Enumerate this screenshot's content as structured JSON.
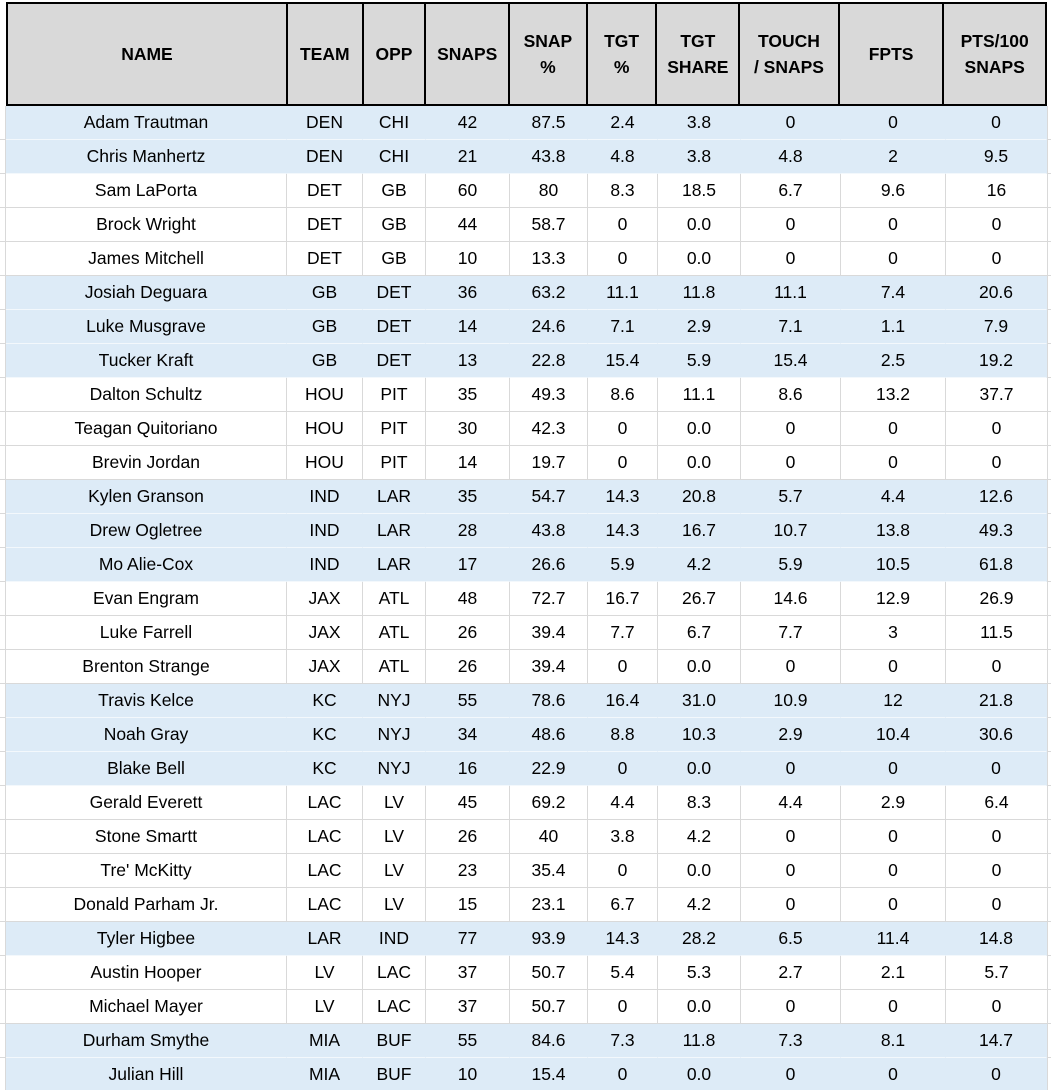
{
  "colors": {
    "header_bg": "#d9d9d9",
    "header_border": "#000000",
    "gridline": "#d9d9d9",
    "row_shaded_bg": "#ddebf7",
    "row_plain_bg": "#ffffff",
    "text": "#000000"
  },
  "table": {
    "columns": [
      {
        "key": "name",
        "label": "NAME"
      },
      {
        "key": "team",
        "label": "TEAM"
      },
      {
        "key": "opp",
        "label": "OPP"
      },
      {
        "key": "snaps",
        "label": "SNAPS"
      },
      {
        "key": "snap_pct",
        "label": "SNAP\n%"
      },
      {
        "key": "tgt_pct",
        "label": "TGT\n%"
      },
      {
        "key": "tgt_share",
        "label": "TGT\nSHARE"
      },
      {
        "key": "touch_per_snaps",
        "label": "TOUCH\n/ SNAPS"
      },
      {
        "key": "fpts",
        "label": "FPTS"
      },
      {
        "key": "pts_per_100_snaps",
        "label": "PTS/100\nSNAPS"
      }
    ],
    "rows": [
      {
        "name": "Adam Trautman",
        "team": "DEN",
        "opp": "CHI",
        "snaps": "42",
        "snap_pct": "87.5",
        "tgt_pct": "2.4",
        "tgt_share": "3.8",
        "touch_per_snaps": "0",
        "fpts": "0",
        "pts_per_100_snaps": "0",
        "shaded": true
      },
      {
        "name": "Chris Manhertz",
        "team": "DEN",
        "opp": "CHI",
        "snaps": "21",
        "snap_pct": "43.8",
        "tgt_pct": "4.8",
        "tgt_share": "3.8",
        "touch_per_snaps": "4.8",
        "fpts": "2",
        "pts_per_100_snaps": "9.5",
        "shaded": true
      },
      {
        "name": "Sam LaPorta",
        "team": "DET",
        "opp": "GB",
        "snaps": "60",
        "snap_pct": "80",
        "tgt_pct": "8.3",
        "tgt_share": "18.5",
        "touch_per_snaps": "6.7",
        "fpts": "9.6",
        "pts_per_100_snaps": "16",
        "shaded": false
      },
      {
        "name": "Brock Wright",
        "team": "DET",
        "opp": "GB",
        "snaps": "44",
        "snap_pct": "58.7",
        "tgt_pct": "0",
        "tgt_share": "0.0",
        "touch_per_snaps": "0",
        "fpts": "0",
        "pts_per_100_snaps": "0",
        "shaded": false
      },
      {
        "name": "James Mitchell",
        "team": "DET",
        "opp": "GB",
        "snaps": "10",
        "snap_pct": "13.3",
        "tgt_pct": "0",
        "tgt_share": "0.0",
        "touch_per_snaps": "0",
        "fpts": "0",
        "pts_per_100_snaps": "0",
        "shaded": false
      },
      {
        "name": "Josiah Deguara",
        "team": "GB",
        "opp": "DET",
        "snaps": "36",
        "snap_pct": "63.2",
        "tgt_pct": "11.1",
        "tgt_share": "11.8",
        "touch_per_snaps": "11.1",
        "fpts": "7.4",
        "pts_per_100_snaps": "20.6",
        "shaded": true
      },
      {
        "name": "Luke Musgrave",
        "team": "GB",
        "opp": "DET",
        "snaps": "14",
        "snap_pct": "24.6",
        "tgt_pct": "7.1",
        "tgt_share": "2.9",
        "touch_per_snaps": "7.1",
        "fpts": "1.1",
        "pts_per_100_snaps": "7.9",
        "shaded": true
      },
      {
        "name": "Tucker Kraft",
        "team": "GB",
        "opp": "DET",
        "snaps": "13",
        "snap_pct": "22.8",
        "tgt_pct": "15.4",
        "tgt_share": "5.9",
        "touch_per_snaps": "15.4",
        "fpts": "2.5",
        "pts_per_100_snaps": "19.2",
        "shaded": true
      },
      {
        "name": "Dalton Schultz",
        "team": "HOU",
        "opp": "PIT",
        "snaps": "35",
        "snap_pct": "49.3",
        "tgt_pct": "8.6",
        "tgt_share": "11.1",
        "touch_per_snaps": "8.6",
        "fpts": "13.2",
        "pts_per_100_snaps": "37.7",
        "shaded": false
      },
      {
        "name": "Teagan Quitoriano",
        "team": "HOU",
        "opp": "PIT",
        "snaps": "30",
        "snap_pct": "42.3",
        "tgt_pct": "0",
        "tgt_share": "0.0",
        "touch_per_snaps": "0",
        "fpts": "0",
        "pts_per_100_snaps": "0",
        "shaded": false
      },
      {
        "name": "Brevin Jordan",
        "team": "HOU",
        "opp": "PIT",
        "snaps": "14",
        "snap_pct": "19.7",
        "tgt_pct": "0",
        "tgt_share": "0.0",
        "touch_per_snaps": "0",
        "fpts": "0",
        "pts_per_100_snaps": "0",
        "shaded": false
      },
      {
        "name": "Kylen Granson",
        "team": "IND",
        "opp": "LAR",
        "snaps": "35",
        "snap_pct": "54.7",
        "tgt_pct": "14.3",
        "tgt_share": "20.8",
        "touch_per_snaps": "5.7",
        "fpts": "4.4",
        "pts_per_100_snaps": "12.6",
        "shaded": true
      },
      {
        "name": "Drew Ogletree",
        "team": "IND",
        "opp": "LAR",
        "snaps": "28",
        "snap_pct": "43.8",
        "tgt_pct": "14.3",
        "tgt_share": "16.7",
        "touch_per_snaps": "10.7",
        "fpts": "13.8",
        "pts_per_100_snaps": "49.3",
        "shaded": true
      },
      {
        "name": "Mo Alie-Cox",
        "team": "IND",
        "opp": "LAR",
        "snaps": "17",
        "snap_pct": "26.6",
        "tgt_pct": "5.9",
        "tgt_share": "4.2",
        "touch_per_snaps": "5.9",
        "fpts": "10.5",
        "pts_per_100_snaps": "61.8",
        "shaded": true
      },
      {
        "name": "Evan Engram",
        "team": "JAX",
        "opp": "ATL",
        "snaps": "48",
        "snap_pct": "72.7",
        "tgt_pct": "16.7",
        "tgt_share": "26.7",
        "touch_per_snaps": "14.6",
        "fpts": "12.9",
        "pts_per_100_snaps": "26.9",
        "shaded": false
      },
      {
        "name": "Luke Farrell",
        "team": "JAX",
        "opp": "ATL",
        "snaps": "26",
        "snap_pct": "39.4",
        "tgt_pct": "7.7",
        "tgt_share": "6.7",
        "touch_per_snaps": "7.7",
        "fpts": "3",
        "pts_per_100_snaps": "11.5",
        "shaded": false
      },
      {
        "name": "Brenton Strange",
        "team": "JAX",
        "opp": "ATL",
        "snaps": "26",
        "snap_pct": "39.4",
        "tgt_pct": "0",
        "tgt_share": "0.0",
        "touch_per_snaps": "0",
        "fpts": "0",
        "pts_per_100_snaps": "0",
        "shaded": false
      },
      {
        "name": "Travis Kelce",
        "team": "KC",
        "opp": "NYJ",
        "snaps": "55",
        "snap_pct": "78.6",
        "tgt_pct": "16.4",
        "tgt_share": "31.0",
        "touch_per_snaps": "10.9",
        "fpts": "12",
        "pts_per_100_snaps": "21.8",
        "shaded": true
      },
      {
        "name": "Noah Gray",
        "team": "KC",
        "opp": "NYJ",
        "snaps": "34",
        "snap_pct": "48.6",
        "tgt_pct": "8.8",
        "tgt_share": "10.3",
        "touch_per_snaps": "2.9",
        "fpts": "10.4",
        "pts_per_100_snaps": "30.6",
        "shaded": true
      },
      {
        "name": "Blake Bell",
        "team": "KC",
        "opp": "NYJ",
        "snaps": "16",
        "snap_pct": "22.9",
        "tgt_pct": "0",
        "tgt_share": "0.0",
        "touch_per_snaps": "0",
        "fpts": "0",
        "pts_per_100_snaps": "0",
        "shaded": true
      },
      {
        "name": "Gerald Everett",
        "team": "LAC",
        "opp": "LV",
        "snaps": "45",
        "snap_pct": "69.2",
        "tgt_pct": "4.4",
        "tgt_share": "8.3",
        "touch_per_snaps": "4.4",
        "fpts": "2.9",
        "pts_per_100_snaps": "6.4",
        "shaded": false
      },
      {
        "name": "Stone Smartt",
        "team": "LAC",
        "opp": "LV",
        "snaps": "26",
        "snap_pct": "40",
        "tgt_pct": "3.8",
        "tgt_share": "4.2",
        "touch_per_snaps": "0",
        "fpts": "0",
        "pts_per_100_snaps": "0",
        "shaded": false
      },
      {
        "name": "Tre' McKitty",
        "team": "LAC",
        "opp": "LV",
        "snaps": "23",
        "snap_pct": "35.4",
        "tgt_pct": "0",
        "tgt_share": "0.0",
        "touch_per_snaps": "0",
        "fpts": "0",
        "pts_per_100_snaps": "0",
        "shaded": false
      },
      {
        "name": "Donald Parham Jr.",
        "team": "LAC",
        "opp": "LV",
        "snaps": "15",
        "snap_pct": "23.1",
        "tgt_pct": "6.7",
        "tgt_share": "4.2",
        "touch_per_snaps": "0",
        "fpts": "0",
        "pts_per_100_snaps": "0",
        "shaded": false
      },
      {
        "name": "Tyler Higbee",
        "team": "LAR",
        "opp": "IND",
        "snaps": "77",
        "snap_pct": "93.9",
        "tgt_pct": "14.3",
        "tgt_share": "28.2",
        "touch_per_snaps": "6.5",
        "fpts": "11.4",
        "pts_per_100_snaps": "14.8",
        "shaded": true
      },
      {
        "name": "Austin Hooper",
        "team": "LV",
        "opp": "LAC",
        "snaps": "37",
        "snap_pct": "50.7",
        "tgt_pct": "5.4",
        "tgt_share": "5.3",
        "touch_per_snaps": "2.7",
        "fpts": "2.1",
        "pts_per_100_snaps": "5.7",
        "shaded": false
      },
      {
        "name": "Michael Mayer",
        "team": "LV",
        "opp": "LAC",
        "snaps": "37",
        "snap_pct": "50.7",
        "tgt_pct": "0",
        "tgt_share": "0.0",
        "touch_per_snaps": "0",
        "fpts": "0",
        "pts_per_100_snaps": "0",
        "shaded": false
      },
      {
        "name": "Durham Smythe",
        "team": "MIA",
        "opp": "BUF",
        "snaps": "55",
        "snap_pct": "84.6",
        "tgt_pct": "7.3",
        "tgt_share": "11.8",
        "touch_per_snaps": "7.3",
        "fpts": "8.1",
        "pts_per_100_snaps": "14.7",
        "shaded": true
      },
      {
        "name": "Julian Hill",
        "team": "MIA",
        "opp": "BUF",
        "snaps": "10",
        "snap_pct": "15.4",
        "tgt_pct": "0",
        "tgt_share": "0.0",
        "touch_per_snaps": "0",
        "fpts": "0",
        "pts_per_100_snaps": "0",
        "shaded": true
      }
    ]
  }
}
